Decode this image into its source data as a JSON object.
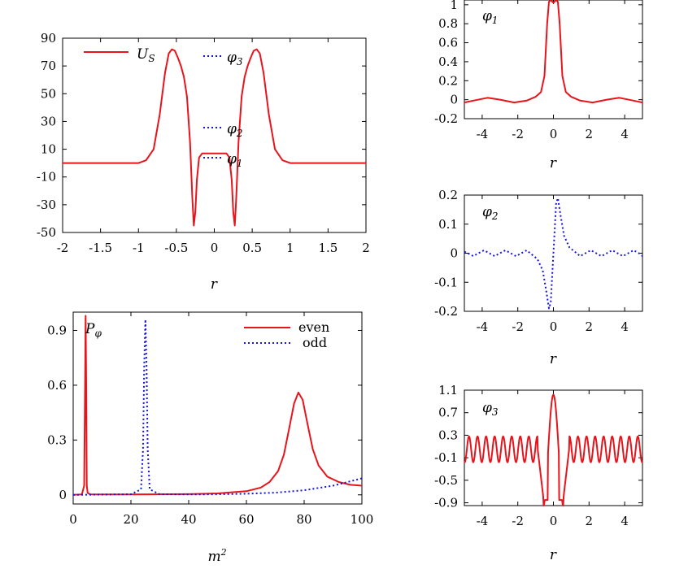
{
  "chart_data": [
    {
      "id": "potential",
      "type": "line",
      "xlabel": "r",
      "ylabel": "",
      "xlim": [
        -2,
        2
      ],
      "ylim": [
        -50,
        90
      ],
      "x_ticks": [
        "-2",
        "-1.5",
        "-1",
        "-0.5",
        "0",
        "0.5",
        "1",
        "1.5",
        "2"
      ],
      "y_ticks": [
        "-50",
        "-30",
        "-10",
        "10",
        "30",
        "50",
        "70",
        "90"
      ],
      "series": [
        {
          "name": "U_S",
          "style": "solid",
          "color": "#e8141c",
          "x": [
            -2,
            -1.0,
            -0.9,
            -0.8,
            -0.72,
            -0.65,
            -0.6,
            -0.56,
            -0.52,
            -0.48,
            -0.44,
            -0.4,
            -0.36,
            -0.32,
            -0.29,
            -0.27,
            -0.25,
            -0.23,
            -0.2,
            -0.16,
            -0.1,
            0,
            0.1,
            0.16,
            0.2,
            0.23,
            0.25,
            0.27,
            0.29,
            0.32,
            0.36,
            0.4,
            0.44,
            0.48,
            0.52,
            0.56,
            0.6,
            0.65,
            0.72,
            0.8,
            0.9,
            1.0,
            2
          ],
          "y": [
            0,
            0,
            2,
            10,
            35,
            65,
            79,
            82,
            81,
            76,
            70,
            62,
            48,
            15,
            -25,
            -45,
            -35,
            -12,
            4,
            7,
            7,
            7,
            7,
            7,
            4,
            -12,
            -35,
            -45,
            -25,
            15,
            48,
            62,
            70,
            76,
            81,
            82,
            79,
            65,
            35,
            10,
            2,
            0,
            0
          ]
        }
      ],
      "annotations": [
        {
          "label": "φ3",
          "style": "dotted",
          "y": 80
        },
        {
          "label": "φ2",
          "style": "dotted",
          "y": 16
        },
        {
          "label": "φ1",
          "style": "dotted",
          "y": 5
        }
      ]
    },
    {
      "id": "probability",
      "type": "line",
      "xlabel": "m²",
      "ylabel": "Pφ",
      "xlim": [
        0,
        100
      ],
      "ylim": [
        -0.05,
        1.0
      ],
      "x_ticks": [
        "0",
        "20",
        "40",
        "60",
        "80",
        "100"
      ],
      "y_ticks": [
        "0",
        "0.3",
        "0.6",
        "0.9"
      ],
      "legend_position": "top-right",
      "series": [
        {
          "name": "even",
          "style": "solid",
          "color": "#e8141c",
          "x": [
            0,
            3,
            3.8,
            4.1,
            4.3,
            4.5,
            4.7,
            5.0,
            6,
            20,
            40,
            50,
            60,
            65,
            68,
            71,
            73,
            75,
            76.5,
            78,
            79.5,
            81,
            83,
            85,
            88,
            92,
            96,
            100
          ],
          "y": [
            0,
            0.002,
            0.05,
            0.6,
            0.98,
            0.6,
            0.05,
            0.01,
            0.002,
            0.002,
            0.004,
            0.008,
            0.02,
            0.04,
            0.07,
            0.13,
            0.22,
            0.38,
            0.5,
            0.56,
            0.52,
            0.4,
            0.25,
            0.16,
            0.1,
            0.07,
            0.055,
            0.05
          ]
        },
        {
          "name": "odd",
          "style": "dotted",
          "color": "#1414e8",
          "x": [
            0,
            20,
            23.5,
            24.2,
            24.6,
            25.0,
            25.4,
            25.8,
            26.5,
            30,
            40,
            50,
            60,
            70,
            80,
            90,
            100
          ],
          "y": [
            0,
            0.003,
            0.03,
            0.25,
            0.7,
            0.96,
            0.7,
            0.25,
            0.03,
            0.003,
            0.002,
            0.003,
            0.006,
            0.012,
            0.025,
            0.05,
            0.09
          ]
        }
      ]
    },
    {
      "id": "phi1",
      "type": "line",
      "xlabel": "r",
      "ylabel": "",
      "label": "φ1",
      "xlim": [
        -5,
        5
      ],
      "ylim": [
        -0.2,
        1.05
      ],
      "x_ticks": [
        "-4",
        "-2",
        "0",
        "2",
        "4"
      ],
      "y_ticks": [
        "-0.2",
        "0",
        "0.2",
        "0.4",
        "0.6",
        "0.8",
        "1"
      ],
      "series": [
        {
          "name": "φ1",
          "style": "solid",
          "color": "#e8141c",
          "x": [
            -5,
            -4.5,
            -3.7,
            -3,
            -2.2,
            -1.5,
            -1.0,
            -0.7,
            -0.5,
            -0.35,
            -0.25,
            -0.15,
            0,
            0.15,
            0.25,
            0.35,
            0.5,
            0.7,
            1.0,
            1.5,
            2.2,
            3,
            3.7,
            4.5,
            5
          ],
          "y": [
            -0.03,
            -0.01,
            0.02,
            0.0,
            -0.03,
            -0.01,
            0.03,
            0.08,
            0.25,
            0.8,
            1.03,
            1.05,
            1.02,
            1.05,
            1.03,
            0.8,
            0.25,
            0.08,
            0.03,
            -0.01,
            -0.03,
            0.0,
            0.02,
            -0.01,
            -0.03
          ]
        }
      ]
    },
    {
      "id": "phi2",
      "type": "line",
      "xlabel": "r",
      "ylabel": "",
      "label": "φ2",
      "xlim": [
        -5,
        5
      ],
      "ylim": [
        -0.2,
        0.2
      ],
      "x_ticks": [
        "-4",
        "-2",
        "0",
        "2",
        "4"
      ],
      "y_ticks": [
        "-0.2",
        "-0.1",
        "0",
        "0.1",
        "0.2"
      ],
      "series": [
        {
          "name": "φ2",
          "style": "dotted",
          "color": "#1414e8",
          "x": [
            -5,
            -4.8,
            -4.5,
            -4.2,
            -3.9,
            -3.6,
            -3.3,
            -3.0,
            -2.7,
            -2.4,
            -2.1,
            -1.8,
            -1.5,
            -1.2,
            -0.9,
            -0.6,
            -0.4,
            -0.25,
            -0.15,
            0,
            0.15,
            0.25,
            0.4,
            0.6,
            0.9,
            1.2,
            1.5,
            1.8,
            2.1,
            2.4,
            2.7,
            3.0,
            3.3,
            3.6,
            3.9,
            4.2,
            4.5,
            4.8,
            5
          ],
          "y": [
            0.005,
            0.0,
            -0.01,
            0.0,
            0.01,
            0.0,
            -0.01,
            0.0,
            0.01,
            0.0,
            -0.01,
            0.0,
            0.01,
            -0.005,
            -0.02,
            -0.06,
            -0.13,
            -0.19,
            -0.17,
            0.0,
            0.17,
            0.19,
            0.13,
            0.06,
            0.02,
            0.005,
            -0.01,
            0.0,
            0.01,
            0.0,
            -0.01,
            0.0,
            0.01,
            0.0,
            -0.01,
            0.0,
            0.01,
            0.0,
            -0.01
          ]
        }
      ]
    },
    {
      "id": "phi3",
      "type": "line",
      "xlabel": "r",
      "ylabel": "",
      "label": "φ3",
      "xlim": [
        -5,
        5
      ],
      "ylim": [
        -0.95,
        1.1
      ],
      "x_ticks": [
        "-4",
        "-2",
        "0",
        "2",
        "4"
      ],
      "y_ticks": [
        "-0.9",
        "-0.5",
        "-0.1",
        "0.3",
        "0.7",
        "1.1"
      ],
      "series": [
        {
          "name": "φ3",
          "style": "solid",
          "color": "#e8141c",
          "x": [],
          "y": []
        }
      ]
    }
  ]
}
